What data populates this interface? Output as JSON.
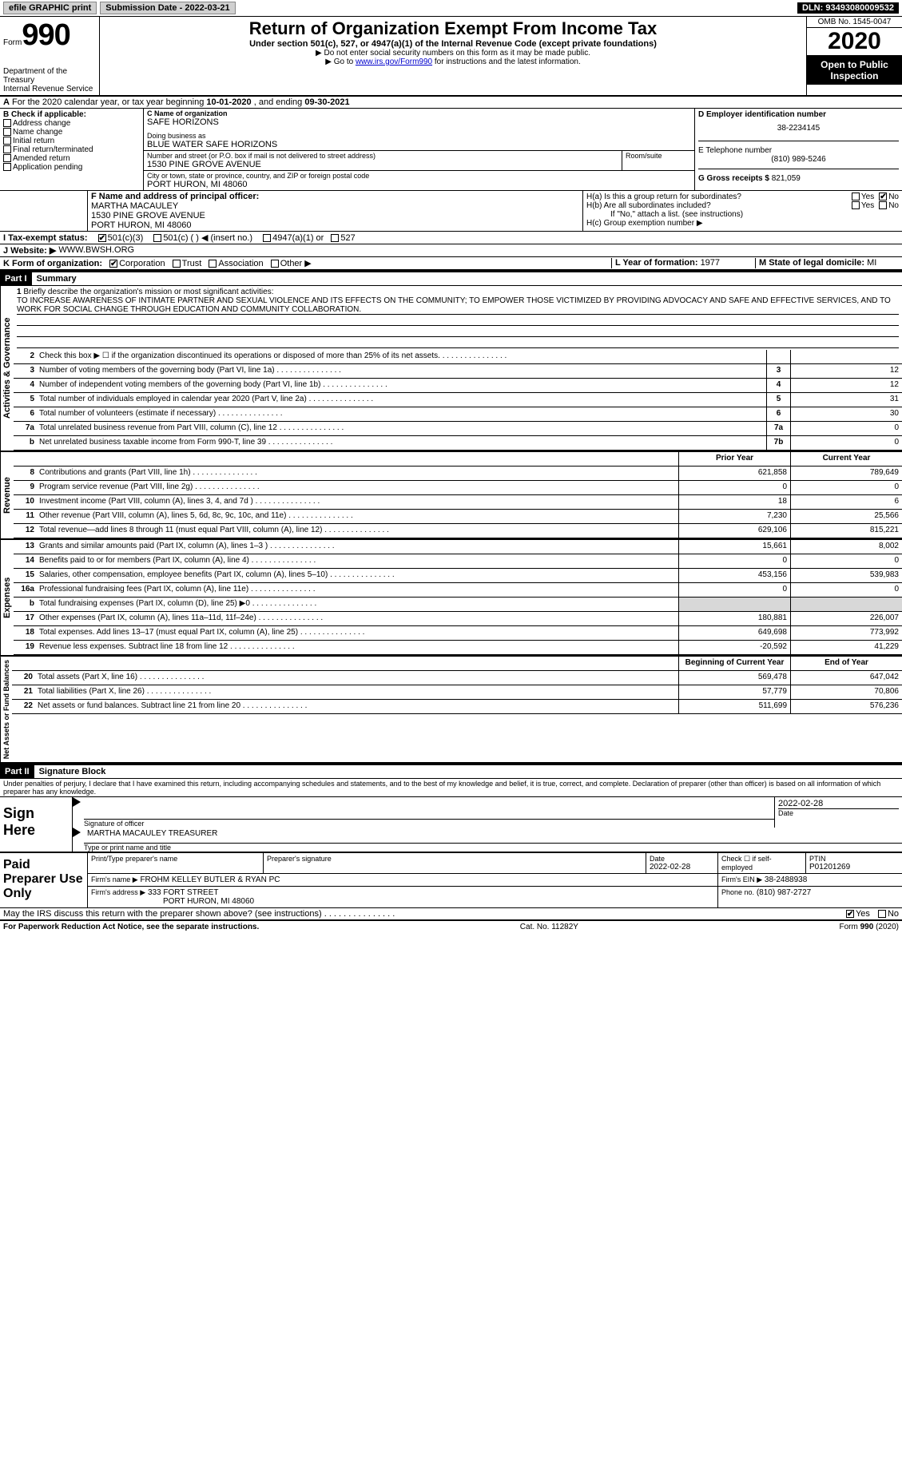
{
  "topbar": {
    "efile": "efile GRAPHIC print",
    "subdate_lbl": "Submission Date - ",
    "subdate": "2022-03-21",
    "dln_lbl": "DLN: ",
    "dln": "93493080009532"
  },
  "header": {
    "form_word": "Form",
    "form_num": "990",
    "dept": "Department of the Treasury\nInternal Revenue Service",
    "title": "Return of Organization Exempt From Income Tax",
    "sub": "Under section 501(c), 527, or 4947(a)(1) of the Internal Revenue Code (except private foundations)",
    "note1": "▶ Do not enter social security numbers on this form as it may be made public.",
    "note2_pre": "▶ Go to ",
    "note2_link": "www.irs.gov/Form990",
    "note2_post": " for instructions and the latest information.",
    "omb": "OMB No. 1545-0047",
    "year": "2020",
    "inspect": "Open to Public Inspection"
  },
  "periodA": {
    "pre": "For the 2020 calendar year, or tax year beginning ",
    "begin": "10-01-2020",
    "mid": " , and ending ",
    "end": "09-30-2021"
  },
  "boxB": {
    "title": "B Check if applicable:",
    "items": [
      "Address change",
      "Name change",
      "Initial return",
      "Final return/terminated",
      "Amended return",
      "Application pending"
    ]
  },
  "boxC": {
    "lbl": "C Name of organization",
    "name": "SAFE HORIZONS",
    "dba_lbl": "Doing business as",
    "dba": "BLUE WATER SAFE HORIZONS",
    "addr_lbl": "Number and street (or P.O. box if mail is not delivered to street address)",
    "room_lbl": "Room/suite",
    "addr": "1530 PINE GROVE AVENUE",
    "city_lbl": "City or town, state or province, country, and ZIP or foreign postal code",
    "city": "PORT HURON, MI  48060"
  },
  "boxD": {
    "lbl": "D Employer identification number",
    "val": "38-2234145"
  },
  "boxE": {
    "lbl": "E Telephone number",
    "val": "(810) 989-5246"
  },
  "boxG": {
    "lbl": "G Gross receipts $",
    "val": "821,059"
  },
  "boxF": {
    "lbl": "F Name and address of principal officer:",
    "name": "MARTHA MACAULEY",
    "addr1": "1530 PINE GROVE AVENUE",
    "addr2": "PORT HURON, MI  48060"
  },
  "boxH": {
    "ha": "H(a)  Is this a group return for subordinates?",
    "hb": "H(b)  Are all subordinates included?",
    "hb_note": "If \"No,\" attach a list. (see instructions)",
    "hc": "H(c)  Group exemption number ▶",
    "yes": "Yes",
    "no": "No"
  },
  "boxI": {
    "lbl": "I   Tax-exempt status:",
    "o1": "501(c)(3)",
    "o2": "501(c) (  ) ◀ (insert no.)",
    "o3": "4947(a)(1) or",
    "o4": "527"
  },
  "boxJ": {
    "lbl": "J   Website: ▶",
    "val": "WWW.BWSH.ORG"
  },
  "boxK": {
    "lbl": "K Form of organization:",
    "o1": "Corporation",
    "o2": "Trust",
    "o3": "Association",
    "o4": "Other ▶"
  },
  "boxL": {
    "lbl": "L Year of formation: ",
    "val": "1977"
  },
  "boxM": {
    "lbl": "M State of legal domicile: ",
    "val": "MI"
  },
  "part1": {
    "hdr": "Part I",
    "title": "Summary"
  },
  "mission": {
    "num": "1",
    "lbl": "Briefly describe the organization's mission or most significant activities:",
    "text": "TO INCREASE AWARENESS OF INTIMATE PARTNER AND SEXUAL VIOLENCE AND ITS EFFECTS ON THE COMMUNITY; TO EMPOWER THOSE VICTIMIZED BY PROVIDING ADVOCACY AND SAFE AND EFFECTIVE SERVICES, AND TO WORK FOR SOCIAL CHANGE THROUGH EDUCATION AND COMMUNITY COLLABORATION."
  },
  "vtabs": {
    "gov": "Activities & Governance",
    "rev": "Revenue",
    "exp": "Expenses",
    "net": "Net Assets or Fund Balances"
  },
  "gov_lines": [
    {
      "n": "2",
      "t": "Check this box ▶ ☐ if the organization discontinued its operations or disposed of more than 25% of its net assets.",
      "b": "",
      "v": ""
    },
    {
      "n": "3",
      "t": "Number of voting members of the governing body (Part VI, line 1a)",
      "b": "3",
      "v": "12"
    },
    {
      "n": "4",
      "t": "Number of independent voting members of the governing body (Part VI, line 1b)",
      "b": "4",
      "v": "12"
    },
    {
      "n": "5",
      "t": "Total number of individuals employed in calendar year 2020 (Part V, line 2a)",
      "b": "5",
      "v": "31"
    },
    {
      "n": "6",
      "t": "Total number of volunteers (estimate if necessary)",
      "b": "6",
      "v": "30"
    },
    {
      "n": "7a",
      "t": "Total unrelated business revenue from Part VIII, column (C), line 12",
      "b": "7a",
      "v": "0"
    },
    {
      "n": "b",
      "t": "Net unrelated business taxable income from Form 990-T, line 39",
      "b": "7b",
      "v": "0"
    }
  ],
  "cols": {
    "prior": "Prior Year",
    "curr": "Current Year",
    "boy": "Beginning of Current Year",
    "eoy": "End of Year"
  },
  "rev_lines": [
    {
      "n": "8",
      "t": "Contributions and grants (Part VIII, line 1h)",
      "p": "621,858",
      "c": "789,649"
    },
    {
      "n": "9",
      "t": "Program service revenue (Part VIII, line 2g)",
      "p": "0",
      "c": "0"
    },
    {
      "n": "10",
      "t": "Investment income (Part VIII, column (A), lines 3, 4, and 7d )",
      "p": "18",
      "c": "6"
    },
    {
      "n": "11",
      "t": "Other revenue (Part VIII, column (A), lines 5, 6d, 8c, 9c, 10c, and 11e)",
      "p": "7,230",
      "c": "25,566"
    },
    {
      "n": "12",
      "t": "Total revenue—add lines 8 through 11 (must equal Part VIII, column (A), line 12)",
      "p": "629,106",
      "c": "815,221"
    }
  ],
  "exp_lines": [
    {
      "n": "13",
      "t": "Grants and similar amounts paid (Part IX, column (A), lines 1–3 )",
      "p": "15,661",
      "c": "8,002"
    },
    {
      "n": "14",
      "t": "Benefits paid to or for members (Part IX, column (A), line 4)",
      "p": "0",
      "c": "0"
    },
    {
      "n": "15",
      "t": "Salaries, other compensation, employee benefits (Part IX, column (A), lines 5–10)",
      "p": "453,156",
      "c": "539,983"
    },
    {
      "n": "16a",
      "t": "Professional fundraising fees (Part IX, column (A), line 11e)",
      "p": "0",
      "c": "0"
    },
    {
      "n": "b",
      "t": "Total fundraising expenses (Part IX, column (D), line 25) ▶0",
      "p": "shade",
      "c": "shade"
    },
    {
      "n": "17",
      "t": "Other expenses (Part IX, column (A), lines 11a–11d, 11f–24e)",
      "p": "180,881",
      "c": "226,007"
    },
    {
      "n": "18",
      "t": "Total expenses. Add lines 13–17 (must equal Part IX, column (A), line 25)",
      "p": "649,698",
      "c": "773,992"
    },
    {
      "n": "19",
      "t": "Revenue less expenses. Subtract line 18 from line 12",
      "p": "-20,592",
      "c": "41,229"
    }
  ],
  "net_lines": [
    {
      "n": "20",
      "t": "Total assets (Part X, line 16)",
      "p": "569,478",
      "c": "647,042"
    },
    {
      "n": "21",
      "t": "Total liabilities (Part X, line 26)",
      "p": "57,779",
      "c": "70,806"
    },
    {
      "n": "22",
      "t": "Net assets or fund balances. Subtract line 21 from line 20",
      "p": "511,699",
      "c": "576,236"
    }
  ],
  "part2": {
    "hdr": "Part II",
    "title": "Signature Block"
  },
  "perjury": "Under penalties of perjury, I declare that I have examined this return, including accompanying schedules and statements, and to the best of my knowledge and belief, it is true, correct, and complete. Declaration of preparer (other than officer) is based on all information of which preparer has any knowledge.",
  "sign": {
    "here": "Sign Here",
    "sig_lbl": "Signature of officer",
    "date_lbl": "Date",
    "date": "2022-02-28",
    "name": "MARTHA MACAULEY  TREASURER",
    "name_lbl": "Type or print name and title"
  },
  "prep": {
    "lbl": "Paid Preparer Use Only",
    "h1": "Print/Type preparer's name",
    "h2": "Preparer's signature",
    "h3": "Date",
    "h3v": "2022-02-28",
    "h4": "Check ☐ if self-employed",
    "h5": "PTIN",
    "h5v": "P01201269",
    "firm_lbl": "Firm's name    ▶",
    "firm": "FROHM KELLEY BUTLER & RYAN PC",
    "ein_lbl": "Firm's EIN ▶",
    "ein": "38-2488938",
    "addr_lbl": "Firm's address ▶",
    "addr1": "333 FORT STREET",
    "addr2": "PORT HURON, MI  48060",
    "phone_lbl": "Phone no.",
    "phone": "(810) 987-2727"
  },
  "discuss": {
    "q": "May the IRS discuss this return with the preparer shown above? (see instructions)",
    "yes": "Yes",
    "no": "No"
  },
  "footer": {
    "left": "For Paperwork Reduction Act Notice, see the separate instructions.",
    "mid": "Cat. No. 11282Y",
    "right": "Form 990 (2020)"
  }
}
